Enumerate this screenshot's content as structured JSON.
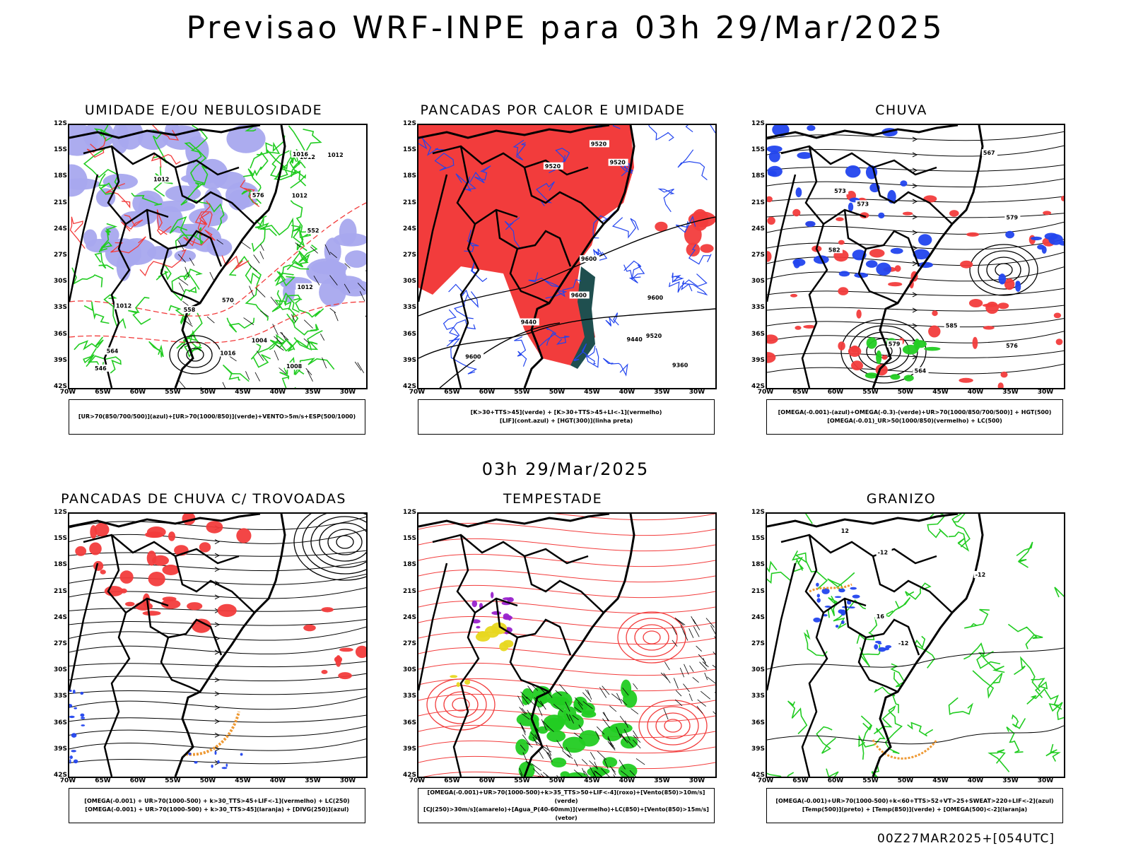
{
  "header": {
    "title": "Previsao WRF-INPE  para 03h 29/Mar/2025"
  },
  "middle_title": "03h 29/Mar/2025",
  "footer": "00Z27MAR2025+[054UTC]",
  "lat_labels": [
    "12S",
    "15S",
    "18S",
    "21S",
    "24S",
    "27S",
    "30S",
    "33S",
    "36S",
    "39S",
    "42S"
  ],
  "lon_labels": [
    "70W",
    "65W",
    "60W",
    "55W",
    "50W",
    "45W",
    "40W",
    "35W",
    "30W"
  ],
  "colors": {
    "red": "#f23c3c",
    "green": "#22cc22",
    "blue": "#2244ee",
    "lavender": "#a8a8ee",
    "orange": "#ee9933",
    "purple": "#9922cc",
    "yellow": "#e8d820",
    "dark": "#1f4f4f"
  },
  "panels": [
    {
      "title": "UMIDADE E/OU NEBULOSIDADE",
      "legend_lines": [
        "[UR>70(850/700/500)](azul)+[UR>70(1000/850)](verde)+VENTO>5m/s+ESP(500/1000)"
      ],
      "contour_labels": [
        "1012",
        "1012",
        "1012",
        "1012",
        "1012",
        "1016",
        "1016",
        "1008",
        "1004",
        "1012",
        "570",
        "576",
        "564",
        "558",
        "552",
        "546"
      ]
    },
    {
      "title": "PANCADAS POR CALOR E UMIDADE",
      "legend_lines": [
        "[K>30+TTS>45](verde)  +  [K>30+TTS>45+LI<-1](vermelho)",
        "[LIF](cont.azul)  +  [HGT(300)](linha preta)"
      ],
      "contour_labels": [
        "9600",
        "9600",
        "9600",
        "9600",
        "9520",
        "9520",
        "9520",
        "9520",
        "9440",
        "9440",
        "9360"
      ]
    },
    {
      "title": "CHUVA",
      "legend_lines": [
        "[OMEGA(-0.001)-(azul)+OMEGA(-0.3)-(verde)+UR>70(1000/850/700/500)]  +  HGT(500)",
        "[OMEGA(-0.01)_UR>50(1000/850)(vermelho)  +  LC(500)"
      ],
      "contour_labels": [
        "585",
        "582",
        "579",
        "579",
        "576",
        "573",
        "573",
        "567",
        "564"
      ]
    },
    {
      "title": "PANCADAS DE CHUVA C/ TROVOADAS",
      "legend_lines": [
        "[OMEGA(-0.001)  +  UR>70(1000-500)  +  k>30_TTS>45+LIF<-1](vermelho)  +  LC(250)",
        "[OMEGA(-0.001)  +  UR>70(1000-500)  +  k>30_TTS>45](laranja)  +  [DIVG(250)](azul)"
      ],
      "contour_labels": []
    },
    {
      "title": "TEMPESTADE",
      "legend_lines": [
        "[OMEGA(-0.001)+UR>70(1000-500)+k>35_TTS>50+LIF<-4](roxo)+[Vento(850)>10m/s](verde)",
        "[CJ(250)>30m/s](amarelo)+[Agua_P(40-60mm)](vermelho)+LC(850)+[Vento(850)>15m/s](vetor)"
      ],
      "contour_labels": []
    },
    {
      "title": "GRANIZO",
      "legend_lines": [
        "[OMEGA(-0.001)+UR>70(1000-500)+k<60+TTS>52+VT>25+SWEAT>220+LIF<-2](azul)",
        "[Temp(500)](preto)  +  [Temp(850)](verde)  +  [OMEGA(500)<-2](laranja)"
      ],
      "contour_labels": [
        "-12",
        "-12",
        "-12",
        "12",
        "16"
      ]
    }
  ]
}
